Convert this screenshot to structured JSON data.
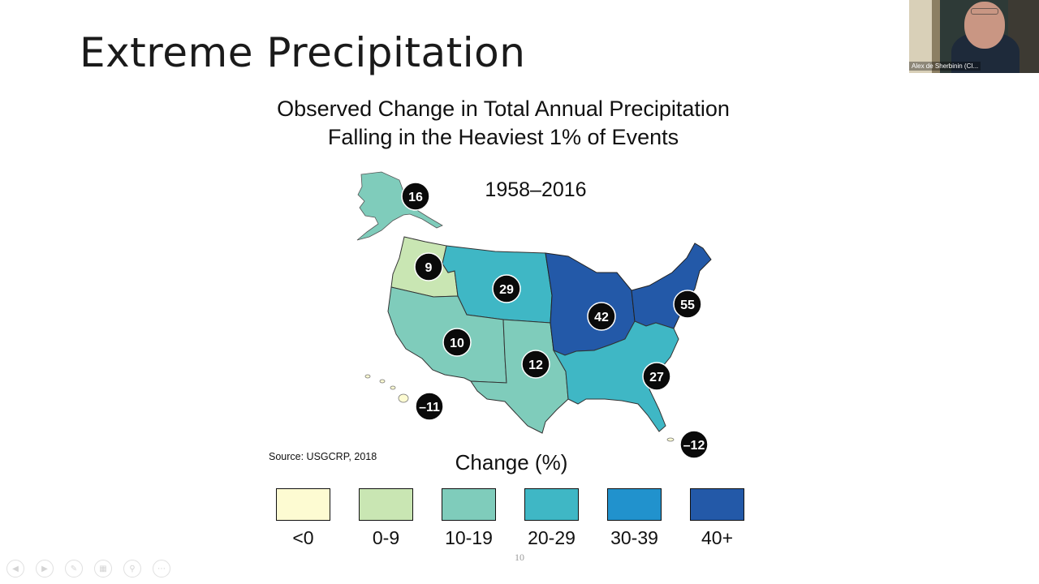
{
  "slide": {
    "title": "Extreme Precipitation",
    "figure_title_line1": "Observed Change in Total Annual Precipitation",
    "figure_title_line2": "Falling in the Heaviest 1% of Events",
    "period": "1958–2016",
    "source": "Source: USGCRP, 2018",
    "page_number": "10"
  },
  "regions": [
    {
      "name": "Alaska",
      "value": "16",
      "bin": "10-19"
    },
    {
      "name": "Northwest",
      "value": "9",
      "bin": "0-9"
    },
    {
      "name": "Northern Great Plains",
      "value": "29",
      "bin": "20-29"
    },
    {
      "name": "Midwest",
      "value": "42",
      "bin": "40+"
    },
    {
      "name": "Northeast",
      "value": "55",
      "bin": "40+"
    },
    {
      "name": "Southwest",
      "value": "10",
      "bin": "10-19"
    },
    {
      "name": "Southern Great Plains",
      "value": "12",
      "bin": "10-19"
    },
    {
      "name": "Southeast",
      "value": "27",
      "bin": "20-29"
    },
    {
      "name": "Hawaii",
      "value": "–11",
      "bin": "<0"
    },
    {
      "name": "Puerto Rico",
      "value": "–12",
      "bin": "<0"
    }
  ],
  "legend": {
    "title": "Change (%)",
    "items": [
      {
        "label": "<0",
        "color": "#fdfbd2"
      },
      {
        "label": "0-9",
        "color": "#c9e6b3"
      },
      {
        "label": "10-19",
        "color": "#7fccbb"
      },
      {
        "label": "20-29",
        "color": "#3fb7c5"
      },
      {
        "label": "30-39",
        "color": "#2192cd"
      },
      {
        "label": "40+",
        "color": "#2359a8"
      }
    ]
  },
  "video": {
    "participant_name": "Alex de Sherbinin (CI..."
  },
  "nav_controls": [
    "previous-icon",
    "next-icon",
    "pen-icon",
    "slides-icon",
    "zoom-icon",
    "more-icon"
  ]
}
